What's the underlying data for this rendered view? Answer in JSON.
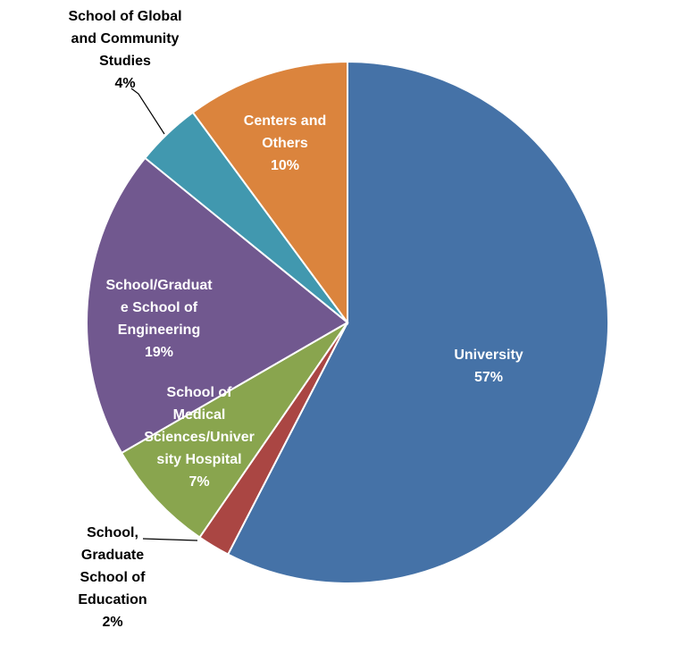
{
  "chart_data": {
    "type": "pie",
    "title": "",
    "slices": [
      {
        "name": "University",
        "value": 57,
        "label_lines": [
          "University"
        ],
        "pct": "57%",
        "color": "#4572A7",
        "label_pos": "inside"
      },
      {
        "name": "School, Graduate School of Education",
        "value": 2,
        "label_lines": [
          "School,",
          "Graduate",
          "School of",
          "Education"
        ],
        "pct": "2%",
        "color": "#AA4643",
        "label_pos": "outside-bottom-left"
      },
      {
        "name": "School of Medical Sciences/University Hospital",
        "value": 7,
        "label_lines": [
          "School of",
          "Medical",
          "Sciences/Univer",
          "sity Hospital"
        ],
        "pct": "7%",
        "color": "#89A54E",
        "label_pos": "inside"
      },
      {
        "name": "School/Graduate School of Engineering",
        "value": 19,
        "label_lines": [
          "School/Graduat",
          "e School of",
          "Engineering"
        ],
        "pct": "19%",
        "color": "#71588F",
        "label_pos": "inside"
      },
      {
        "name": "School of Global and Community Studies",
        "value": 4,
        "label_lines": [
          "School of Global",
          "and Community",
          "Studies"
        ],
        "pct": "4%",
        "color": "#4198AF",
        "label_pos": "outside-top-left"
      },
      {
        "name": "Centers and Others",
        "value": 10,
        "label_lines": [
          "Centers and",
          "Others"
        ],
        "pct": "10%",
        "color": "#DB843D",
        "label_pos": "inside"
      }
    ],
    "start": "12 o'clock",
    "direction": "clockwise",
    "legend": "none"
  }
}
